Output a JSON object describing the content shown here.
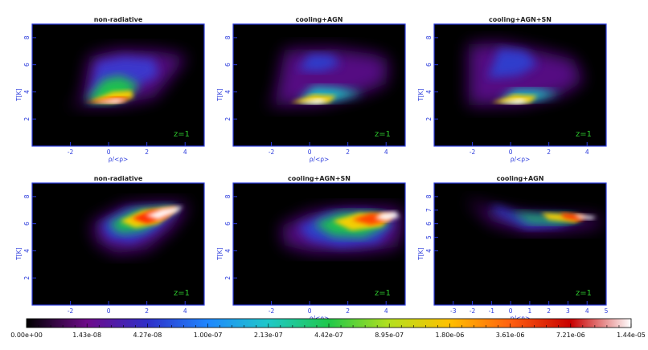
{
  "chart_data": {
    "type": "heatmap",
    "panels": [
      {
        "title": "non-radiative",
        "xlabel": "ρ/<ρ>",
        "ylabel": "T[K]",
        "annotation": "z=1",
        "xlim": [
          -4,
          5
        ],
        "ylim": [
          0,
          9
        ],
        "xticks": [
          "-2",
          "0",
          "2",
          "4"
        ],
        "yticks": [
          "2",
          "4",
          "6",
          "8"
        ]
      },
      {
        "title": "cooling+AGN",
        "xlabel": "ρ/<ρ>",
        "ylabel": "T[K]",
        "annotation": "z=1",
        "xlim": [
          -4,
          5
        ],
        "ylim": [
          0,
          9
        ],
        "xticks": [
          "-2",
          "0",
          "2",
          "4"
        ],
        "yticks": [
          "2",
          "4",
          "6",
          "8"
        ]
      },
      {
        "title": "cooling+AGN+SN",
        "xlabel": "ρ/<ρ>",
        "ylabel": "T[K]",
        "annotation": "z=1",
        "xlim": [
          -4,
          5
        ],
        "ylim": [
          0,
          9
        ],
        "xticks": [
          "-2",
          "0",
          "2",
          "4"
        ],
        "yticks": [
          "2",
          "4",
          "6",
          "8"
        ]
      },
      {
        "title": "non-radiative",
        "xlabel": "",
        "ylabel": "T[K]",
        "annotation": "z=1",
        "xlim": [
          -4,
          5
        ],
        "ylim": [
          0,
          9
        ],
        "xticks": [
          "-2",
          "0",
          "2",
          "4"
        ],
        "yticks": [
          "2",
          "4",
          "6",
          "8"
        ]
      },
      {
        "title": "cooling+AGN+SN",
        "xlabel": "ρ/<ρ>",
        "ylabel": "T[K]",
        "annotation": "z=1",
        "xlim": [
          -4,
          5
        ],
        "ylim": [
          0,
          9
        ],
        "xticks": [
          "-2",
          "0",
          "2",
          "4"
        ],
        "yticks": [
          "2",
          "4",
          "6",
          "8"
        ]
      },
      {
        "title": "cooling+AGN",
        "xlabel": "n/<n>",
        "ylabel": "T[K]",
        "annotation": "z=1",
        "xlim": [
          -4,
          5
        ],
        "ylim": [
          0,
          9
        ],
        "xticks": [
          "-3",
          "-2",
          "-1",
          "0",
          "1",
          "2",
          "3",
          "4",
          "5"
        ],
        "yticks": [
          "4",
          "5",
          "6",
          "7",
          "8"
        ]
      }
    ],
    "colorbar": {
      "ticks": [
        "0.00e+00",
        "1.43e-08",
        "4.27e-08",
        "1.00e-07",
        "2.13e-07",
        "4.42e-07",
        "8.95e-07",
        "1.80e-06",
        "3.61e-06",
        "7.21e-06",
        "1.44e-05"
      ],
      "colors": [
        "#000000",
        "#6e0b8a",
        "#2f2fc8",
        "#1f87ff",
        "#1fc8c8",
        "#1fc84a",
        "#b4e01e",
        "#ffc000",
        "#ff6010",
        "#c80000",
        "#ffffff"
      ]
    }
  }
}
